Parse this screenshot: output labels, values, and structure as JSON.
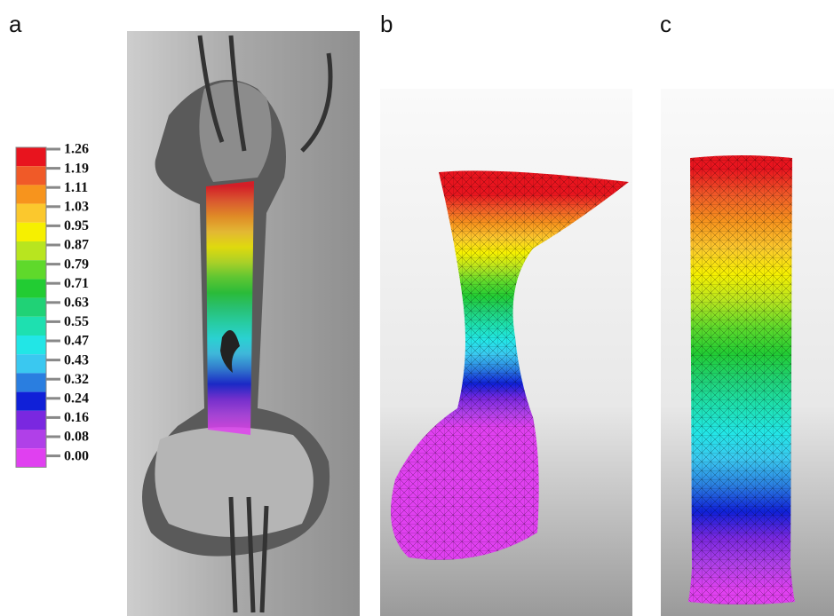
{
  "panels": [
    {
      "label": "a"
    },
    {
      "label": "b"
    },
    {
      "label": "c"
    }
  ],
  "colorbar": {
    "ticks": [
      "1.26",
      "1.19",
      "1.11",
      "1.03",
      "0.95",
      "0.87",
      "0.79",
      "0.71",
      "0.63",
      "0.55",
      "0.47",
      "0.43",
      "0.32",
      "0.24",
      "0.16",
      "0.08",
      "0.00"
    ],
    "colors": [
      "#e8141e",
      "#f05a28",
      "#f7941d",
      "#fbc82d",
      "#f6f000",
      "#b8e51f",
      "#5fd92b",
      "#22cc33",
      "#20d276",
      "#1ee0b0",
      "#22e6e6",
      "#3ac8f0",
      "#2a7ee0",
      "#1020d8",
      "#7a28e0",
      "#b040e8",
      "#e040f0"
    ]
  }
}
